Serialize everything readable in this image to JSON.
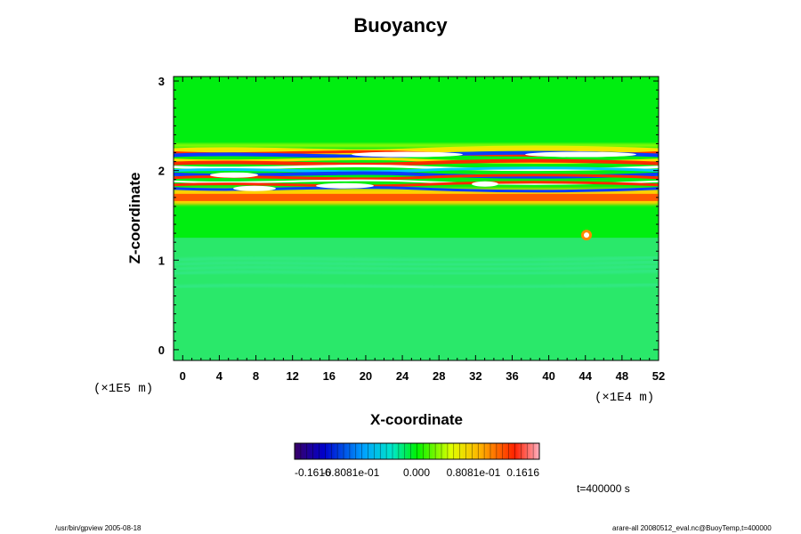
{
  "chart_data": {
    "type": "heatmap",
    "title": "Buoyancy",
    "xlabel": "X-coordinate",
    "ylabel": "Z-coordinate",
    "x_unit": "(×1E4 m)",
    "y_unit": "(×1E5 m)",
    "xlim": [
      -1,
      52
    ],
    "ylim": [
      -0.12,
      3.05
    ],
    "x_ticks": [
      "0",
      "4",
      "8",
      "12",
      "16",
      "20",
      "24",
      "28",
      "32",
      "36",
      "40",
      "44",
      "48",
      "52"
    ],
    "y_ticks": [
      "0",
      "1",
      "2",
      "3"
    ],
    "x_tick_values": [
      0,
      4,
      8,
      12,
      16,
      20,
      24,
      28,
      32,
      36,
      40,
      44,
      48,
      52
    ],
    "y_tick_values": [
      0,
      1,
      2,
      3
    ],
    "colorbar": {
      "labels": [
        "-0.1616",
        "-0.8081e-01",
        "0.000",
        "0.8081e-01",
        "0.1616"
      ],
      "range": [
        -0.1616,
        0.1616
      ],
      "colormap": "rainbow"
    },
    "bands": [
      {
        "z_from": -0.12,
        "z_to": 1.2,
        "value": -0.02,
        "description_color": "#33ee66"
      },
      {
        "z_from": 1.2,
        "z_to": 1.62,
        "value": 0.0
      },
      {
        "z_from": 1.62,
        "z_to": 1.76,
        "value": 0.12
      },
      {
        "z_from": 1.76,
        "z_to": 2.28,
        "value": "alternating ±0.16"
      },
      {
        "z_from": 2.28,
        "z_to": 2.5,
        "value": 0.02
      },
      {
        "z_from": 2.5,
        "z_to": 3.05,
        "value": 0.0
      }
    ],
    "time_label": "t=400000 s"
  },
  "footer": {
    "left": "/usr/bin/gpview 2005-08-18",
    "right": "arare-all 20080512_eval.nc@BuoyTemp,t=400000"
  },
  "colors": {
    "green": "#00f000",
    "red": "#ff2a00",
    "blue": "#0a3cff",
    "white": "#ffffff"
  }
}
